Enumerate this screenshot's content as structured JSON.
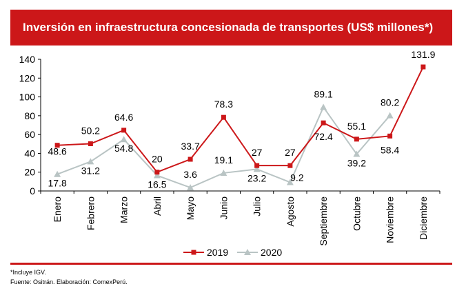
{
  "chart_data": {
    "type": "line",
    "title": "Inversión en infraestructura concesionada de transportes (US$ millones*)",
    "categories": [
      "Enero",
      "Febrero",
      "Marzo",
      "Abril",
      "Mayo",
      "Junio",
      "Julio",
      "Agosto",
      "Septiembre",
      "Octubre",
      "Noviembre",
      "Diciembre"
    ],
    "series": [
      {
        "name": "2019",
        "color": "#cc1719",
        "marker": "square",
        "values": [
          48.6,
          50.2,
          64.6,
          20,
          33.7,
          78.3,
          27,
          27,
          72.4,
          55.1,
          58.4,
          131.9
        ],
        "labels": [
          "48.6",
          "50.2",
          "64.6",
          "20",
          "33.7",
          "78.3",
          "27",
          "27",
          "72.4",
          "55.1",
          "58.4",
          "131.9"
        ]
      },
      {
        "name": "2020",
        "color": "#b9c4c4",
        "marker": "triangle",
        "values": [
          17.8,
          31.2,
          54.8,
          16.5,
          3.6,
          19.1,
          23.2,
          9.2,
          89.1,
          39.2,
          80.2,
          null
        ],
        "labels": [
          "17.8",
          "31.2",
          "54.8",
          "16.5",
          "3.6",
          "19.1",
          "23.2",
          "9.2",
          "89.1",
          "39.2",
          "80.2",
          ""
        ]
      }
    ],
    "ylim": [
      0,
      140
    ],
    "yticks": [
      "0",
      "20",
      "40",
      "60",
      "80",
      "100",
      "120",
      "140"
    ],
    "grid": false,
    "legend_position": "bottom-center"
  },
  "footnotes": {
    "note": "*Incluye IGV.",
    "source": "Fuente: Ositrán. Elaboración: ComexPerú."
  }
}
